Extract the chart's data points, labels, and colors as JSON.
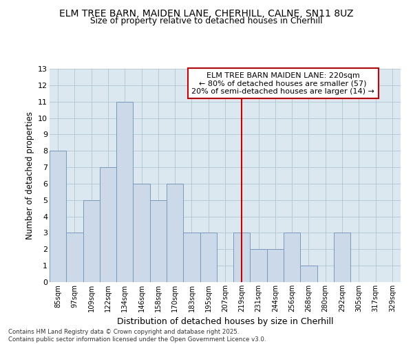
{
  "title": "ELM TREE BARN, MAIDEN LANE, CHERHILL, CALNE, SN11 8UZ",
  "subtitle": "Size of property relative to detached houses in Cherhill",
  "xlabel": "Distribution of detached houses by size in Cherhill",
  "ylabel": "Number of detached properties",
  "categories": [
    "85sqm",
    "97sqm",
    "109sqm",
    "122sqm",
    "134sqm",
    "146sqm",
    "158sqm",
    "170sqm",
    "183sqm",
    "195sqm",
    "207sqm",
    "219sqm",
    "231sqm",
    "244sqm",
    "256sqm",
    "268sqm",
    "280sqm",
    "292sqm",
    "305sqm",
    "317sqm",
    "329sqm"
  ],
  "values": [
    8,
    3,
    5,
    7,
    11,
    6,
    5,
    6,
    3,
    3,
    0,
    3,
    2,
    2,
    3,
    1,
    0,
    3,
    0,
    0,
    0
  ],
  "bar_color": "#ccd9e8",
  "bar_edge_color": "#7799bb",
  "subject_index": 11,
  "subject_label": "ELM TREE BARN MAIDEN LANE: 220sqm",
  "annotation_line1": "← 80% of detached houses are smaller (57)",
  "annotation_line2": "20% of semi-detached houses are larger (14) →",
  "annotation_box_color": "#cc0000",
  "vline_color": "#cc0000",
  "ylim": [
    0,
    13
  ],
  "yticks": [
    0,
    1,
    2,
    3,
    4,
    5,
    6,
    7,
    8,
    9,
    10,
    11,
    12,
    13
  ],
  "grid_color": "#aec6d4",
  "background_color": "#dce8f0",
  "footer1": "Contains HM Land Registry data © Crown copyright and database right 2025.",
  "footer2": "Contains public sector information licensed under the Open Government Licence v3.0."
}
